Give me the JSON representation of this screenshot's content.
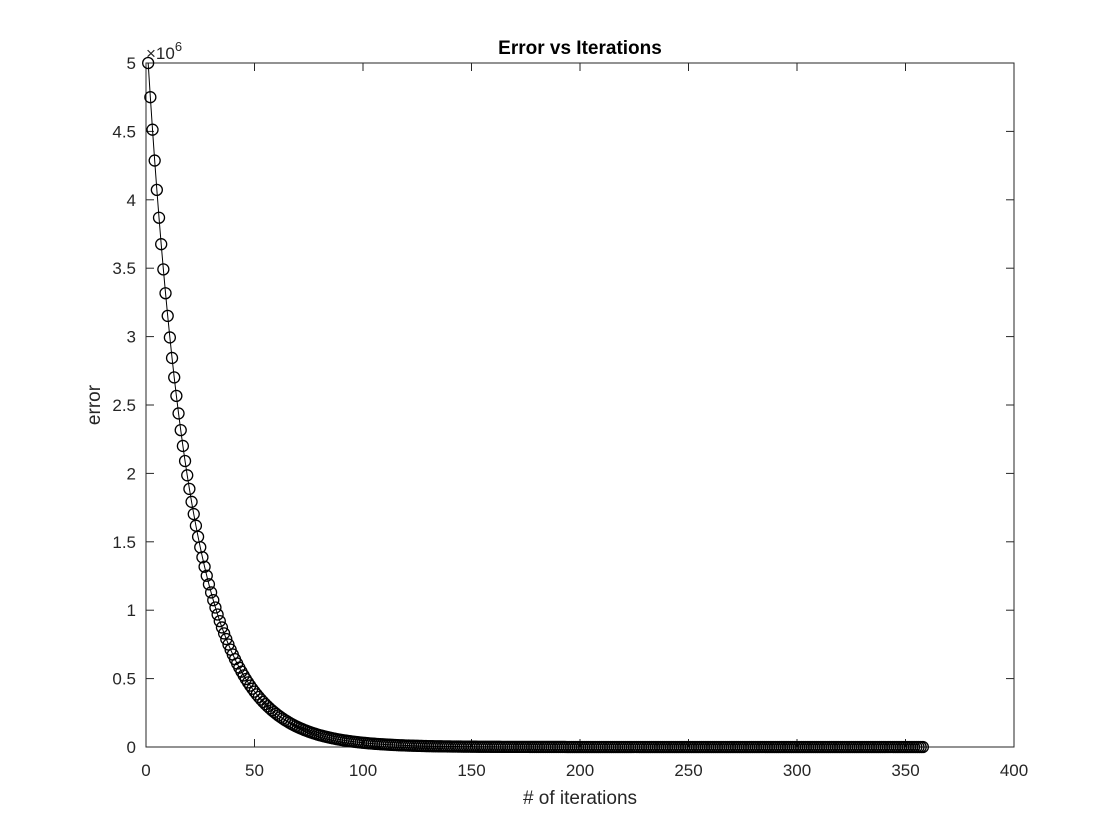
{
  "chart_data": {
    "type": "line",
    "title": "Error vs Iterations",
    "xlabel": "# of iterations",
    "ylabel": "error",
    "xlim": [
      0,
      400
    ],
    "ylim": [
      0,
      5000000
    ],
    "x_ticks": [
      "0",
      "50",
      "100",
      "150",
      "200",
      "250",
      "300",
      "350",
      "400"
    ],
    "y_ticks": [
      "0",
      "0.5",
      "1",
      "1.5",
      "2",
      "2.5",
      "3",
      "3.5",
      "4",
      "4.5",
      "5"
    ],
    "y_exponent_label": "×10",
    "y_exponent_power": "6",
    "marker": "circle",
    "line_color": "#000000",
    "grid": false,
    "series": [
      {
        "x_start": 1,
        "x_end": 358,
        "x_step": 1,
        "y_first": 5000000,
        "decay_ratio": 0.95,
        "values_sample": [
          [
            1,
            5000000
          ],
          [
            2,
            4750000
          ],
          [
            3,
            4512500
          ],
          [
            4,
            4286875
          ],
          [
            5,
            4072531
          ],
          [
            6,
            3868905
          ],
          [
            7,
            3675459
          ],
          [
            8,
            3491686
          ],
          [
            9,
            3317102
          ],
          [
            10,
            3151247
          ],
          [
            15,
            2438430
          ],
          [
            20,
            1886768
          ],
          [
            25,
            1459973
          ],
          [
            30,
            1129735
          ],
          [
            40,
            676507
          ],
          [
            50,
            405082
          ],
          [
            60,
            242554
          ],
          [
            70,
            145222
          ],
          [
            80,
            86967
          ],
          [
            90,
            52075
          ],
          [
            100,
            31180
          ],
          [
            120,
            11183
          ],
          [
            150,
            2412
          ],
          [
            200,
            186
          ],
          [
            300,
            1
          ],
          [
            358,
            0
          ]
        ]
      }
    ]
  }
}
